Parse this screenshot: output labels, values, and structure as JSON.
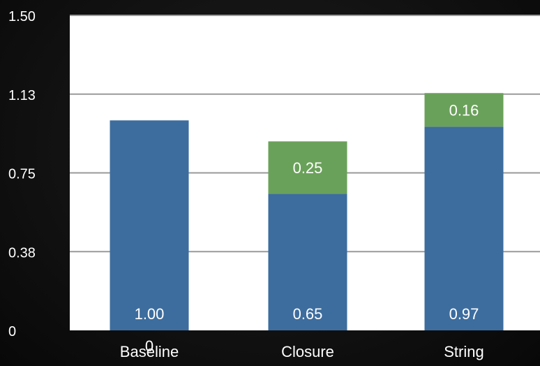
{
  "colors": {
    "background": "#111111",
    "plot_area": "#ffffff",
    "gridline": "#9a9a9a",
    "text": "#ffffff",
    "series_base": "#3d6d9e",
    "series_top": "#6aa15a"
  },
  "chart_data": {
    "type": "bar",
    "stacked": true,
    "categories": [
      "Baseline",
      "Closure",
      "String"
    ],
    "series": [
      {
        "values": [
          1.0,
          0.65,
          0.97
        ],
        "labels": [
          "1.00",
          "0.65",
          "0.97"
        ],
        "color": "#3d6d9e"
      },
      {
        "values": [
          0,
          0.25,
          0.16
        ],
        "labels": [
          "0",
          "0.25",
          "0.16"
        ],
        "color": "#6aa15a"
      }
    ],
    "y_ticks": [
      "0",
      "0.38",
      "0.75",
      "1.13",
      "1.50"
    ],
    "ylim": [
      0,
      1.5
    ],
    "grid": true,
    "legend": "none"
  }
}
